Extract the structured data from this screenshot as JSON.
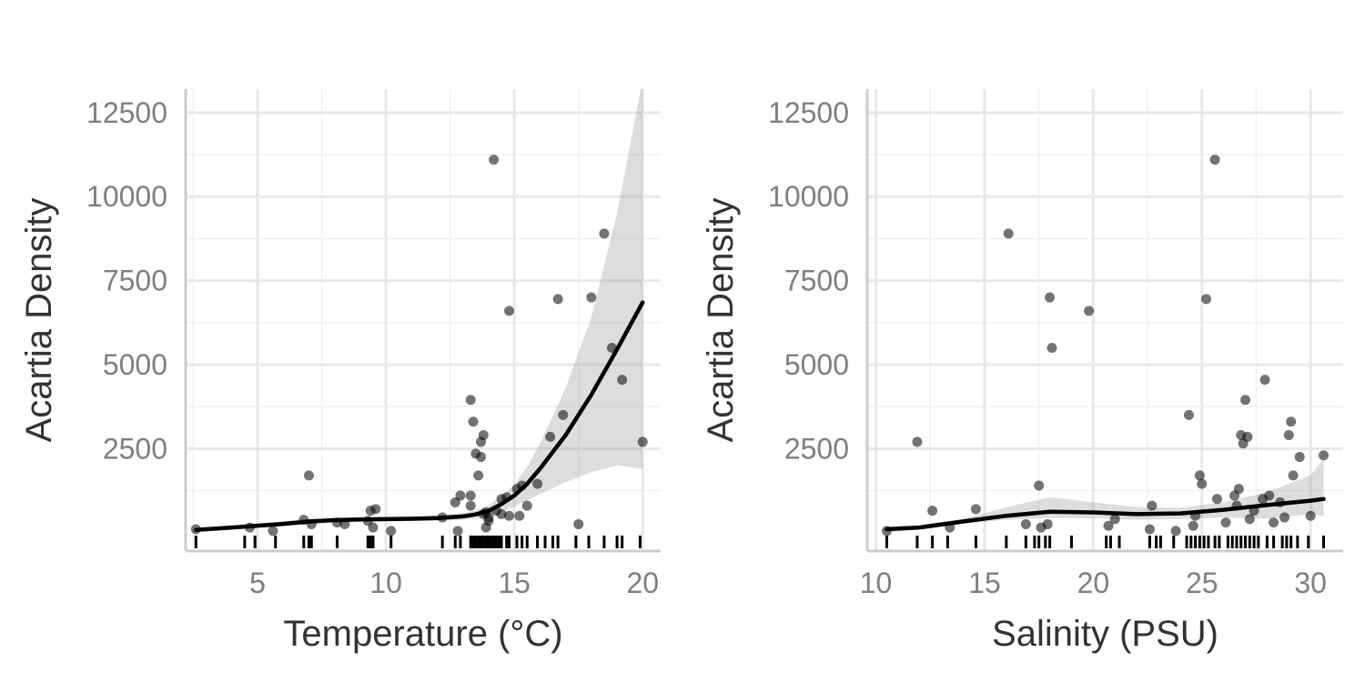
{
  "chart_data": [
    {
      "type": "scatter",
      "xlabel": "Temperature (°C)",
      "ylabel": "Acartia Density",
      "xlim": [
        2.2,
        20.7
      ],
      "ylim": [
        -550,
        13200
      ],
      "x_ticks": [
        5,
        10,
        15,
        20
      ],
      "x_tick_labels": [
        "5",
        "10",
        "15",
        "20"
      ],
      "y_ticks": [
        2500,
        5000,
        7500,
        10000,
        12500
      ],
      "y_tick_labels": [
        "2500",
        "5000",
        "7500",
        "10000",
        "12500"
      ],
      "grid": true,
      "points": [
        [
          2.6,
          100
        ],
        [
          4.7,
          150
        ],
        [
          5.6,
          50
        ],
        [
          6.8,
          380
        ],
        [
          7.0,
          1700
        ],
        [
          7.1,
          250
        ],
        [
          8.1,
          300
        ],
        [
          8.4,
          250
        ],
        [
          9.3,
          350
        ],
        [
          9.4,
          650
        ],
        [
          9.5,
          150
        ],
        [
          9.6,
          700
        ],
        [
          10.2,
          50
        ],
        [
          12.2,
          450
        ],
        [
          12.7,
          900
        ],
        [
          12.8,
          50
        ],
        [
          12.9,
          1100
        ],
        [
          13.3,
          3950
        ],
        [
          13.3,
          1100
        ],
        [
          13.3,
          800
        ],
        [
          13.4,
          3300
        ],
        [
          13.5,
          2350
        ],
        [
          13.6,
          1700
        ],
        [
          13.7,
          2700
        ],
        [
          13.7,
          2250
        ],
        [
          13.8,
          2900
        ],
        [
          13.8,
          550
        ],
        [
          13.9,
          150
        ],
        [
          13.9,
          600
        ],
        [
          14.0,
          450
        ],
        [
          14.0,
          350
        ],
        [
          14.2,
          11100
        ],
        [
          14.3,
          650
        ],
        [
          14.5,
          1000
        ],
        [
          14.5,
          550
        ],
        [
          14.7,
          1050
        ],
        [
          14.8,
          500
        ],
        [
          14.8,
          6600
        ],
        [
          15.1,
          1300
        ],
        [
          15.2,
          500
        ],
        [
          15.3,
          1400
        ],
        [
          15.5,
          800
        ],
        [
          15.9,
          1450
        ],
        [
          16.4,
          2850
        ],
        [
          16.7,
          6950
        ],
        [
          16.9,
          3500
        ],
        [
          17.5,
          250
        ],
        [
          18.0,
          7000
        ],
        [
          18.5,
          8900
        ],
        [
          18.8,
          5500
        ],
        [
          19.2,
          4550
        ],
        [
          20.0,
          2700
        ]
      ],
      "rug_x": [
        2.6,
        4.5,
        4.9,
        5.7,
        6.8,
        7.0,
        7.1,
        8.1,
        9.3,
        9.4,
        9.5,
        10.2,
        12.2,
        12.7,
        12.9,
        13.3,
        13.4,
        13.5,
        13.6,
        13.7,
        13.8,
        13.9,
        14.0,
        14.1,
        14.2,
        14.3,
        14.4,
        14.5,
        14.7,
        14.8,
        15.1,
        15.3,
        15.5,
        15.9,
        16.2,
        16.5,
        16.7,
        17.4,
        17.9,
        18.5,
        19.0,
        19.2,
        19.9
      ],
      "smooth": {
        "x": [
          2.6,
          4,
          6,
          7,
          8,
          9,
          10,
          11,
          12,
          13,
          13.5,
          14,
          14.5,
          15,
          15.5,
          16,
          17,
          18,
          19,
          20
        ],
        "y": [
          80,
          150,
          260,
          330,
          370,
          390,
          400,
          410,
          430,
          480,
          540,
          650,
          850,
          1100,
          1450,
          1900,
          2900,
          4100,
          5450,
          6850
        ],
        "lower": [
          20,
          90,
          180,
          240,
          300,
          320,
          330,
          340,
          350,
          380,
          420,
          480,
          620,
          780,
          950,
          1150,
          1500,
          1800,
          2000,
          1900
        ],
        "upper": [
          140,
          210,
          340,
          420,
          440,
          460,
          470,
          480,
          510,
          580,
          660,
          820,
          1080,
          1420,
          1950,
          2650,
          4300,
          6400,
          9500,
          13500
        ]
      }
    },
    {
      "type": "scatter",
      "xlabel": "Salinity (PSU)",
      "ylabel": "Acartia Density",
      "xlim": [
        9.6,
        31.5
      ],
      "ylim": [
        -550,
        13200
      ],
      "x_ticks": [
        10,
        15,
        20,
        25,
        30
      ],
      "x_tick_labels": [
        "10",
        "15",
        "20",
        "25",
        "30"
      ],
      "y_ticks": [
        2500,
        5000,
        7500,
        10000,
        12500
      ],
      "y_tick_labels": [
        "2500",
        "5000",
        "7500",
        "10000",
        "12500"
      ],
      "grid": true,
      "points": [
        [
          10.5,
          50
        ],
        [
          11.9,
          2700
        ],
        [
          12.6,
          650
        ],
        [
          13.4,
          150
        ],
        [
          14.6,
          700
        ],
        [
          16.1,
          8900
        ],
        [
          16.9,
          250
        ],
        [
          17.5,
          1400
        ],
        [
          17.6,
          150
        ],
        [
          17.9,
          250
        ],
        [
          18.0,
          7000
        ],
        [
          18.1,
          5500
        ],
        [
          19.8,
          6600
        ],
        [
          20.7,
          200
        ],
        [
          21.0,
          400
        ],
        [
          22.6,
          100
        ],
        [
          22.7,
          800
        ],
        [
          23.8,
          50
        ],
        [
          24.4,
          3500
        ],
        [
          24.6,
          200
        ],
        [
          24.7,
          500
        ],
        [
          24.9,
          1700
        ],
        [
          25.0,
          1450
        ],
        [
          25.2,
          6950
        ],
        [
          25.6,
          11100
        ],
        [
          25.7,
          1000
        ],
        [
          26.1,
          300
        ],
        [
          26.5,
          1100
        ],
        [
          26.6,
          800
        ],
        [
          26.7,
          1300
        ],
        [
          26.8,
          2900
        ],
        [
          26.9,
          2650
        ],
        [
          27.0,
          3950
        ],
        [
          27.1,
          2850
        ],
        [
          27.2,
          400
        ],
        [
          27.4,
          650
        ],
        [
          27.8,
          1000
        ],
        [
          27.9,
          4550
        ],
        [
          28.1,
          1100
        ],
        [
          28.3,
          300
        ],
        [
          28.6,
          900
        ],
        [
          28.8,
          450
        ],
        [
          29.0,
          2900
        ],
        [
          29.1,
          3300
        ],
        [
          29.2,
          1700
        ],
        [
          29.5,
          2250
        ],
        [
          30.0,
          500
        ],
        [
          30.6,
          2300
        ]
      ],
      "rug_x": [
        10.5,
        11.9,
        12.6,
        13.3,
        14.6,
        16.0,
        16.9,
        17.3,
        17.5,
        17.8,
        18.0,
        19.0,
        20.6,
        20.8,
        21.2,
        22.6,
        22.9,
        23.1,
        23.7,
        24.3,
        24.5,
        24.7,
        24.9,
        25.1,
        25.3,
        25.6,
        25.8,
        26.2,
        26.4,
        26.6,
        26.8,
        27.0,
        27.2,
        27.4,
        27.6,
        28.0,
        28.3,
        28.7,
        28.9,
        29.1,
        29.4,
        29.9,
        30.6
      ],
      "smooth": {
        "x": [
          10.5,
          12,
          14,
          16,
          18,
          20,
          22,
          24,
          26,
          28,
          30,
          30.6
        ],
        "y": [
          100,
          150,
          330,
          500,
          620,
          600,
          550,
          570,
          680,
          820,
          950,
          1000
        ],
        "lower": [
          20,
          90,
          250,
          380,
          440,
          420,
          380,
          400,
          450,
          420,
          550,
          500
        ],
        "upper": [
          180,
          220,
          410,
          750,
          1050,
          900,
          760,
          740,
          900,
          1200,
          1700,
          2200
        ]
      }
    }
  ]
}
